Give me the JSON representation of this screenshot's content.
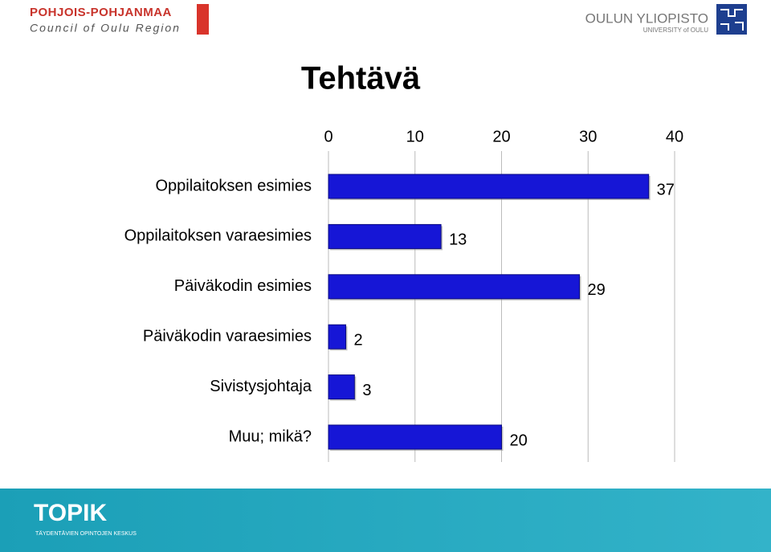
{
  "header": {
    "left_title": "POHJOIS-POHJANMAA",
    "left_subtitle": "Council of Oulu Region",
    "right_title": "OULUN YLIOPISTO",
    "right_subtitle": "UNIVERSITY of OULU"
  },
  "chart_data": {
    "type": "bar",
    "orientation": "horizontal",
    "title": "Tehtävä",
    "categories": [
      "Oppilaitoksen esimies",
      "Oppilaitoksen varaesimies",
      "Päiväkodin esimies",
      "Päiväkodin varaesimies",
      "Sivistysjohtaja",
      "Muu; mikä?"
    ],
    "values": [
      37,
      13,
      29,
      2,
      3,
      20
    ],
    "color": "#1616d6",
    "xlim": [
      0,
      40
    ],
    "xticks": [
      0,
      10,
      20,
      30,
      40
    ],
    "grid": true
  },
  "footer": {
    "logo": "TOPIK",
    "tagline": "TÄYDENTÄVIEN OPINTOJEN KESKUS"
  }
}
